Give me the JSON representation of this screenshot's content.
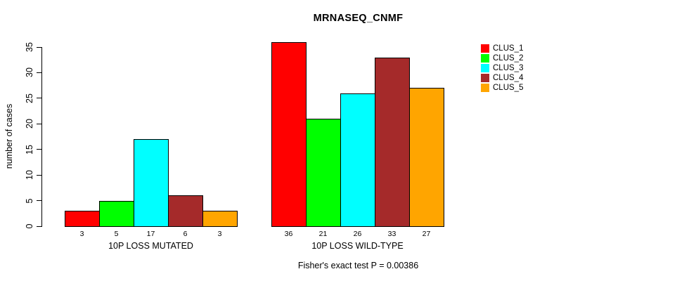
{
  "chart_data": {
    "type": "bar",
    "title": "MRNASEQ_CNMF",
    "ylabel": "number of cases",
    "xlabel": "",
    "ylim": [
      0,
      35
    ],
    "yticks": [
      0,
      5,
      10,
      15,
      20,
      25,
      30,
      35
    ],
    "grid": false,
    "bar_value_labels": true,
    "legend_position": "right",
    "annotation": "Fisher's exact test P = 0.00386",
    "groups": [
      {
        "label": "10P LOSS MUTATED",
        "values": [
          3,
          5,
          17,
          6,
          3
        ]
      },
      {
        "label": "10P LOSS WILD-TYPE",
        "values": [
          36,
          21,
          26,
          33,
          27
        ]
      }
    ],
    "series": [
      {
        "name": "CLUS_1",
        "color": "#FF0000",
        "values": [
          3,
          36
        ]
      },
      {
        "name": "CLUS_2",
        "color": "#00FF00",
        "values": [
          5,
          21
        ]
      },
      {
        "name": "CLUS_3",
        "color": "#00FFFF",
        "values": [
          17,
          26
        ]
      },
      {
        "name": "CLUS_4",
        "color": "#A52A2A",
        "values": [
          6,
          33
        ]
      },
      {
        "name": "CLUS_5",
        "color": "#FFA500",
        "values": [
          3,
          27
        ]
      }
    ]
  }
}
